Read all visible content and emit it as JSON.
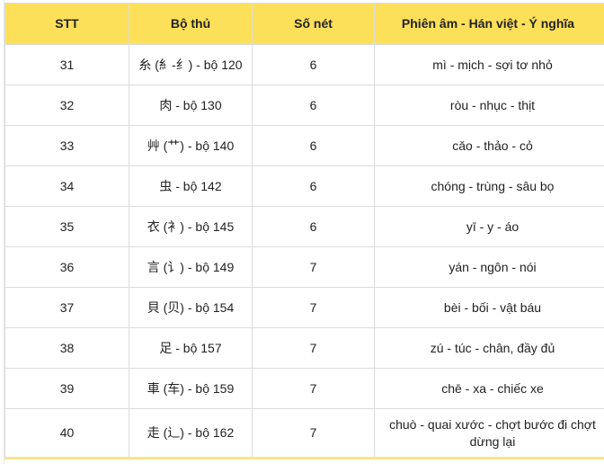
{
  "header": {
    "stt": "STT",
    "radical": "Bộ thủ",
    "strokes": "Số nét",
    "meaning": "Phiên âm - Hán việt - Ý nghĩa"
  },
  "header_color": "#fde05a",
  "rows": [
    {
      "stt": "31",
      "radical": "糸 (糹-纟) - bộ 120",
      "strokes": "6",
      "meaning": "mì - mịch - sợi tơ nhỏ"
    },
    {
      "stt": "32",
      "radical": "肉 - bộ 130",
      "strokes": "6",
      "meaning": "ròu - nhục - thịt"
    },
    {
      "stt": "33",
      "radical": "艸 (艹) - bộ 140",
      "strokes": "6",
      "meaning": "cǎo - thảo - cỏ"
    },
    {
      "stt": "34",
      "radical": "虫 - bộ 142",
      "strokes": "6",
      "meaning": "chóng - trùng - sâu bọ"
    },
    {
      "stt": "35",
      "radical": "衣 (衤) - bộ 145",
      "strokes": "6",
      "meaning": "yī - y - áo"
    },
    {
      "stt": "36",
      "radical": "言 (讠) - bộ 149",
      "strokes": "7",
      "meaning": "yán - ngôn - nói"
    },
    {
      "stt": "37",
      "radical": "貝 (贝) - bộ 154",
      "strokes": "7",
      "meaning": "bèi - bối - vật báu"
    },
    {
      "stt": "38",
      "radical": "足 - bộ 157",
      "strokes": "7",
      "meaning": "zú - túc - chân, đầy đủ"
    },
    {
      "stt": "39",
      "radical": "車 (车) - bộ 159",
      "strokes": "7",
      "meaning": "chē - xa - chiếc xe"
    },
    {
      "stt": "40",
      "radical": "走 (辶) - bộ 162",
      "strokes": "7",
      "meaning": "chuò - quai xước - chợt bước đi chợt dừng lại"
    }
  ]
}
